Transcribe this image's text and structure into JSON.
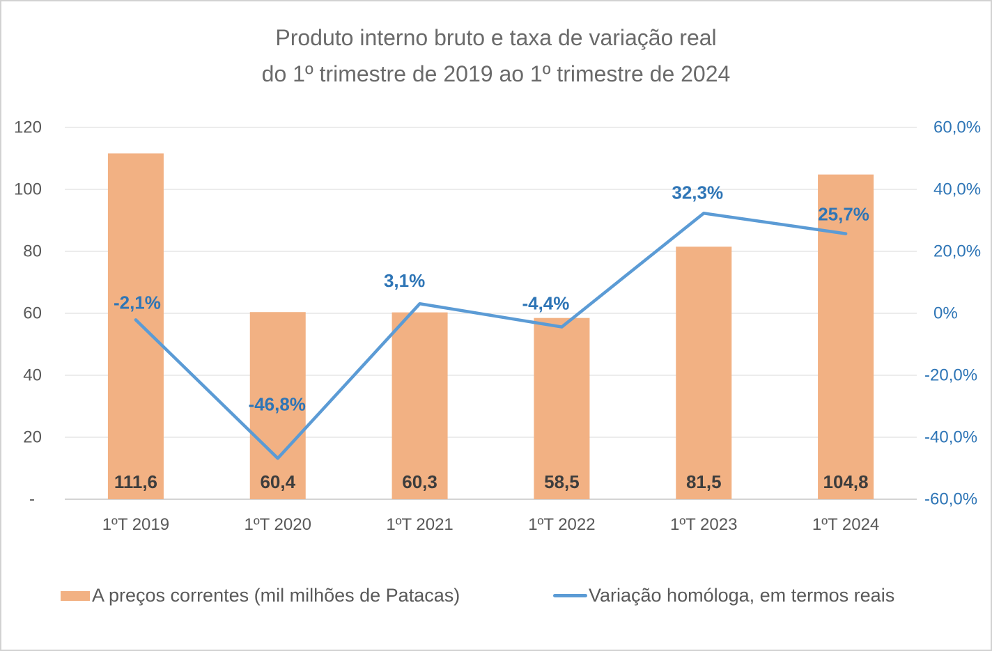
{
  "title": {
    "line1": "Produto interno bruto e taxa de variação real",
    "line2": "do 1º trimestre de 2019 ao 1º trimestre de 2024"
  },
  "chart_data": {
    "type": "combo",
    "categories": [
      "1ºT 2019",
      "1ºT 2020",
      "1ºT 2021",
      "1ºT 2022",
      "1ºT 2023",
      "1ºT 2024"
    ],
    "series": [
      {
        "name": "A preços correntes (mil milhões de Patacas)",
        "type": "bar",
        "axis": "left",
        "values": [
          111.6,
          60.4,
          60.3,
          58.5,
          81.5,
          104.8
        ],
        "labels": [
          "111,6",
          "60,4",
          "60,3",
          "58,5",
          "81,5",
          "104,8"
        ],
        "color": "#F2B183",
        "label_color": "#3D3D3D"
      },
      {
        "name": "Variação homóloga, em termos reais",
        "type": "line",
        "axis": "right",
        "values": [
          -2.1,
          -46.8,
          3.1,
          -4.4,
          32.3,
          25.7
        ],
        "labels": [
          "-2,1%",
          "-46,8%",
          "3,1%",
          "-4,4%",
          "32,3%",
          "25,7%"
        ],
        "color": "#5B9BD5",
        "label_color": "#2E75B6"
      }
    ],
    "left_axis": {
      "ticks": [
        "120",
        "100",
        "80",
        "60",
        "40",
        "20",
        "-"
      ],
      "min": 0,
      "max": 120,
      "color": "#595959"
    },
    "right_axis": {
      "ticks": [
        "60,0%",
        "40,0%",
        "20,0%",
        "0%",
        "-20,0%",
        "-40,0%",
        "-60,0%"
      ],
      "min": -60,
      "max": 60,
      "color": "#2E75B6"
    },
    "x_axis": {
      "color": "#595959"
    },
    "grid": true,
    "grid_colors": {
      "grid": "#D9D9D9",
      "axis": "#C6C6C6"
    },
    "legend_position": "bottom"
  },
  "legend": {
    "items": [
      {
        "label": "A preços correntes (mil milhões de Patacas)",
        "color": "#F2B183",
        "swatch": "bar-swatch"
      },
      {
        "label": "Variação homóloga, em termos reais",
        "color": "#5B9BD5",
        "swatch": "line-swatch"
      }
    ]
  }
}
